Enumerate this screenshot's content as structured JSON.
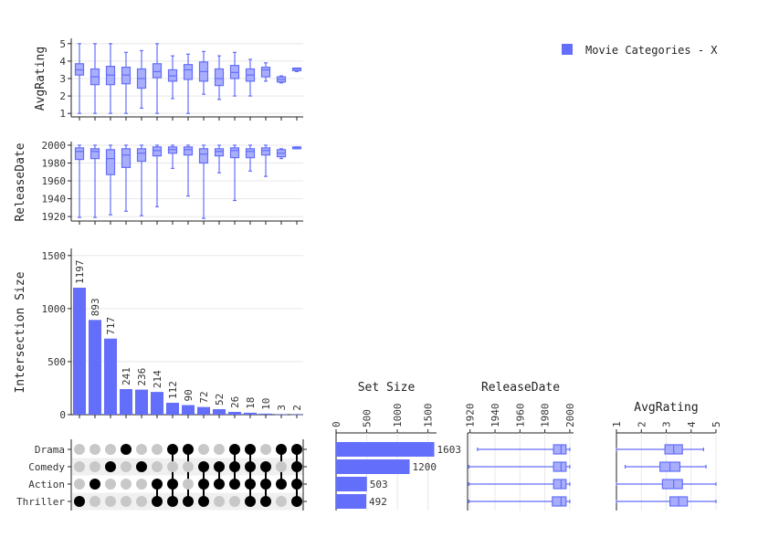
{
  "colors": {
    "bar": "#636efa",
    "box_fill": "#a9aefc",
    "box_stroke": "#636efa",
    "dot_on": "#000000",
    "dot_off": "#c8c8c8",
    "grid": "#e8e8e8",
    "axis": "#222222",
    "stripe": "#f0f0f0"
  },
  "legend": {
    "label": "Movie Categories - X"
  },
  "chart_data": {
    "type": "upset",
    "sets": [
      "Drama",
      "Comedy",
      "Action",
      "Thriller"
    ],
    "intersections": [
      {
        "combo": [
          "Thriller"
        ],
        "size": 1197
      },
      {
        "combo": [
          "Action"
        ],
        "size": 893
      },
      {
        "combo": [
          "Comedy"
        ],
        "size": 717
      },
      {
        "combo": [
          "Drama"
        ],
        "size": 241
      },
      {
        "combo": [
          "Comedy"
        ],
        "size": 236
      },
      {
        "combo": [
          "Action",
          "Thriller"
        ],
        "size": 214
      },
      {
        "combo": [
          "Drama",
          "Action",
          "Thriller"
        ],
        "size": 112
      },
      {
        "combo": [
          "Drama",
          "Thriller"
        ],
        "size": 90
      },
      {
        "combo": [
          "Comedy",
          "Action",
          "Thriller"
        ],
        "size": 72
      },
      {
        "combo": [
          "Comedy",
          "Action"
        ],
        "size": 52
      },
      {
        "combo": [
          "Drama",
          "Comedy",
          "Action"
        ],
        "size": 26
      },
      {
        "combo": [
          "Drama",
          "Comedy",
          "Action",
          "Thriller"
        ],
        "size": 18
      },
      {
        "combo": [
          "Comedy",
          "Action",
          "Thriller"
        ],
        "size": 10
      },
      {
        "combo": [
          "Drama",
          "Action"
        ],
        "size": 3
      },
      {
        "combo": [
          "Drama",
          "Comedy",
          "Action",
          "Thriller"
        ],
        "size": 2
      }
    ],
    "intersection_axis": {
      "title": "Intersection Size",
      "ticks": [
        0,
        500,
        1000,
        1500
      ],
      "tick_labels": [
        "0",
        "500",
        "1000",
        "1500"
      ],
      "ylim": [
        0,
        1550
      ]
    },
    "avg_rating_by_intersection": {
      "title": "AvgRating",
      "ticks": [
        1,
        2,
        3,
        4,
        5
      ],
      "tick_labels": [
        "1",
        "2",
        "3",
        "4",
        "5"
      ],
      "ylim": [
        0.8,
        5.2
      ],
      "boxes": [
        {
          "min": 1.0,
          "q1": 3.2,
          "median": 3.5,
          "q3": 3.85,
          "max": 5.0
        },
        {
          "min": 1.0,
          "q1": 2.65,
          "median": 3.1,
          "q3": 3.55,
          "max": 5.0
        },
        {
          "min": 1.0,
          "q1": 2.65,
          "median": 3.2,
          "q3": 3.7,
          "max": 5.0
        },
        {
          "min": 1.0,
          "q1": 2.7,
          "median": 3.2,
          "q3": 3.65,
          "max": 4.5
        },
        {
          "min": 1.3,
          "q1": 2.45,
          "median": 3.0,
          "q3": 3.55,
          "max": 4.6
        },
        {
          "min": 1.0,
          "q1": 3.05,
          "median": 3.4,
          "q3": 3.85,
          "max": 5.0
        },
        {
          "min": 1.85,
          "q1": 2.85,
          "median": 3.15,
          "q3": 3.5,
          "max": 4.3
        },
        {
          "min": 1.0,
          "q1": 2.95,
          "median": 3.5,
          "q3": 3.8,
          "max": 4.4
        },
        {
          "min": 2.1,
          "q1": 2.85,
          "median": 3.4,
          "q3": 3.95,
          "max": 4.55
        },
        {
          "min": 1.8,
          "q1": 2.6,
          "median": 3.0,
          "q3": 3.55,
          "max": 4.3
        },
        {
          "min": 2.0,
          "q1": 3.0,
          "median": 3.35,
          "q3": 3.75,
          "max": 4.5
        },
        {
          "min": 2.0,
          "q1": 2.85,
          "median": 3.2,
          "q3": 3.55,
          "max": 4.1
        },
        {
          "min": 2.85,
          "q1": 3.1,
          "median": 3.5,
          "q3": 3.65,
          "max": 3.9
        },
        {
          "min": 2.75,
          "q1": 2.8,
          "median": 2.95,
          "q3": 3.1,
          "max": 3.15
        },
        {
          "min": 3.4,
          "q1": 3.45,
          "median": 3.55,
          "q3": 3.6,
          "max": 3.6
        }
      ]
    },
    "release_date_by_intersection": {
      "title": "ReleaseDate",
      "ticks": [
        1920,
        1940,
        1960,
        1980,
        2000
      ],
      "tick_labels": [
        "1920",
        "1940",
        "1960",
        "1980",
        "2000"
      ],
      "ylim": [
        1915,
        2002
      ],
      "boxes": [
        {
          "min": 1919,
          "q1": 1984,
          "median": 1993,
          "q3": 1997,
          "max": 2000
        },
        {
          "min": 1919,
          "q1": 1985,
          "median": 1993,
          "q3": 1996,
          "max": 2000
        },
        {
          "min": 1922,
          "q1": 1967,
          "median": 1985,
          "q3": 1995,
          "max": 2000
        },
        {
          "min": 1926,
          "q1": 1975,
          "median": 1989,
          "q3": 1996,
          "max": 2000
        },
        {
          "min": 1921,
          "q1": 1982,
          "median": 1991,
          "q3": 1996,
          "max": 2000
        },
        {
          "min": 1931,
          "q1": 1988,
          "median": 1994,
          "q3": 1998,
          "max": 2000
        },
        {
          "min": 1974,
          "q1": 1991,
          "median": 1995,
          "q3": 1998,
          "max": 2000
        },
        {
          "min": 1943,
          "q1": 1989,
          "median": 1995,
          "q3": 1998,
          "max": 2000
        },
        {
          "min": 1918,
          "q1": 1980,
          "median": 1990,
          "q3": 1996,
          "max": 2000
        },
        {
          "min": 1969,
          "q1": 1988,
          "median": 1993,
          "q3": 1996,
          "max": 2000
        },
        {
          "min": 1938,
          "q1": 1986,
          "median": 1994,
          "q3": 1997,
          "max": 2000
        },
        {
          "min": 1971,
          "q1": 1986,
          "median": 1993,
          "q3": 1996,
          "max": 2000
        },
        {
          "min": 1965,
          "q1": 1989,
          "median": 1994,
          "q3": 1997,
          "max": 2000
        },
        {
          "min": 1985,
          "q1": 1987,
          "median": 1991,
          "q3": 1995,
          "max": 1996
        },
        {
          "min": 1996,
          "q1": 1996,
          "median": 1997,
          "q3": 1998,
          "max": 1998
        }
      ]
    },
    "set_size": {
      "title": "Set Size",
      "values": [
        1603,
        1200,
        503,
        492
      ],
      "ticks": [
        0,
        500,
        1000,
        1500
      ],
      "tick_labels": [
        "0",
        "500",
        "1000",
        "1500"
      ],
      "xlim": [
        0,
        1640
      ]
    },
    "release_date_by_set": {
      "title": "ReleaseDate",
      "ticks": [
        1920,
        1940,
        1960,
        1980,
        2000
      ],
      "tick_labels": [
        "1920",
        "1940",
        "1960",
        "1980",
        "2000"
      ],
      "xlim": [
        1918,
        2003
      ],
      "boxes": [
        {
          "min": 1926,
          "q1": 1987,
          "median": 1993,
          "q3": 1997,
          "max": 2000
        },
        {
          "min": 1919,
          "q1": 1987,
          "median": 1993,
          "q3": 1997,
          "max": 2000
        },
        {
          "min": 1919,
          "q1": 1987,
          "median": 1993,
          "q3": 1997,
          "max": 2000
        },
        {
          "min": 1919,
          "q1": 1986,
          "median": 1993,
          "q3": 1997,
          "max": 2000
        }
      ]
    },
    "avg_rating_by_set": {
      "title": "AvgRating",
      "ticks": [
        1,
        2,
        3,
        4,
        5
      ],
      "tick_labels": [
        "1",
        "2",
        "3",
        "4",
        "5"
      ],
      "xlim": [
        1,
        5
      ],
      "boxes": [
        {
          "min": 1.0,
          "q1": 2.95,
          "median": 3.3,
          "q3": 3.65,
          "max": 4.5
        },
        {
          "min": 1.35,
          "q1": 2.75,
          "median": 3.15,
          "q3": 3.55,
          "max": 4.6
        },
        {
          "min": 1.0,
          "q1": 2.85,
          "median": 3.3,
          "q3": 3.65,
          "max": 5.0
        },
        {
          "min": 1.0,
          "q1": 3.15,
          "median": 3.5,
          "q3": 3.85,
          "max": 5.0
        }
      ]
    }
  }
}
